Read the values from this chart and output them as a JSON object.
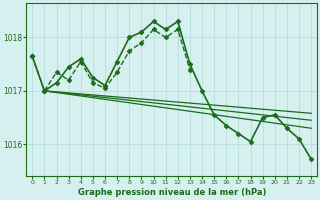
{
  "background_color": "#d6f0f0",
  "grid_color": "#b8dede",
  "line_color": "#1a6b1a",
  "title": "Graphe pression niveau de la mer (hPa)",
  "xlim": [
    -0.5,
    23.5
  ],
  "ylim": [
    1015.4,
    1018.65
  ],
  "yticks": [
    1016,
    1017,
    1018
  ],
  "xticks": [
    0,
    1,
    2,
    3,
    4,
    5,
    6,
    7,
    8,
    9,
    10,
    11,
    12,
    13,
    14,
    15,
    16,
    17,
    18,
    19,
    20,
    21,
    22,
    23
  ],
  "series": [
    {
      "x": [
        0,
        1,
        2,
        3,
        4,
        5,
        6,
        7,
        8,
        9,
        10,
        11,
        12,
        13,
        14,
        15,
        16,
        17,
        18,
        19,
        20,
        21,
        22,
        23
      ],
      "y": [
        1017.65,
        1017.0,
        1017.15,
        1017.45,
        1017.6,
        1017.25,
        1017.1,
        1017.55,
        1018.0,
        1018.1,
        1018.3,
        1018.15,
        1018.3,
        1017.5,
        1017.0,
        1016.55,
        1016.35,
        1016.2,
        1016.05,
        1016.5,
        1016.55,
        1016.3,
        1016.1,
        1015.72
      ],
      "marker": "D",
      "markersize": 2.5,
      "linewidth": 1.2,
      "linestyle": "-"
    },
    {
      "x": [
        1,
        23
      ],
      "y": [
        1017.0,
        1016.58
      ],
      "marker": null,
      "markersize": 0,
      "linewidth": 0.9,
      "linestyle": "-"
    },
    {
      "x": [
        1,
        23
      ],
      "y": [
        1017.0,
        1016.45
      ],
      "marker": null,
      "markersize": 0,
      "linewidth": 0.9,
      "linestyle": "-"
    },
    {
      "x": [
        1,
        23
      ],
      "y": [
        1017.0,
        1016.3
      ],
      "marker": null,
      "markersize": 0,
      "linewidth": 0.9,
      "linestyle": "-"
    },
    {
      "x": [
        0,
        1,
        2,
        3,
        4,
        5,
        6,
        7,
        8,
        9,
        10,
        11,
        12,
        13
      ],
      "y": [
        1017.65,
        1017.0,
        1017.35,
        1017.2,
        1017.55,
        1017.15,
        1017.05,
        1017.35,
        1017.75,
        1017.9,
        1018.15,
        1018.0,
        1018.15,
        1017.4
      ],
      "marker": "D",
      "markersize": 2.5,
      "linewidth": 1.0,
      "linestyle": "--"
    }
  ]
}
